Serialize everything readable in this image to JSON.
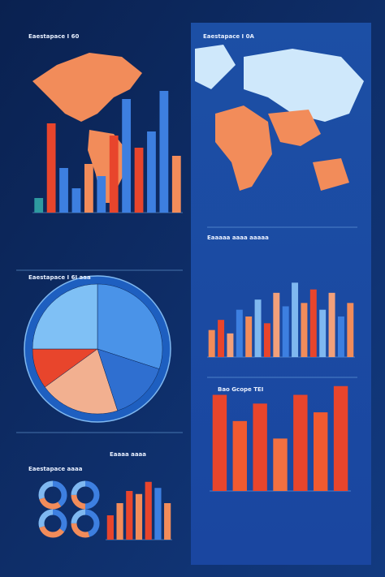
{
  "chart_data": [
    {
      "type": "bar",
      "title": "Eaestapace I 60",
      "values": [
        18,
        110,
        55,
        30,
        60,
        45,
        95,
        140,
        80,
        100,
        150,
        70
      ],
      "colors": [
        "#2e9aa0",
        "#e8452c",
        "#3d7fe0",
        "#3d7fe0",
        "#f28c5a",
        "#3d7fe0",
        "#e8452c",
        "#3d7fe0",
        "#e8452c",
        "#3d7fe0",
        "#3d7fe0",
        "#f28c5a"
      ],
      "ylim": [
        0,
        160
      ]
    },
    {
      "type": "map",
      "title": "Eaestapace I 0A"
    },
    {
      "type": "bar",
      "title": "Eaaaaa aaaa aaaaa",
      "values": [
        40,
        55,
        35,
        70,
        60,
        85,
        50,
        95,
        75,
        110,
        80,
        100,
        70,
        95,
        60,
        80
      ],
      "colors": [
        "#f28c5a",
        "#e8452c",
        "#f2a07a",
        "#3d7fe0",
        "#f28c5a",
        "#7fb8f0",
        "#e8452c",
        "#f2a07a",
        "#3d7fe0",
        "#7fb8f0",
        "#f28c5a",
        "#e8452c",
        "#7fb8f0",
        "#f2a07a",
        "#3d7fe0",
        "#f28c5a"
      ],
      "ylim": [
        0,
        120
      ]
    },
    {
      "type": "pie",
      "title": "Eaestapace I 6I aaa",
      "values": [
        30,
        15,
        20,
        10,
        25
      ],
      "colors": [
        "#4a93e8",
        "#2f6fd0",
        "#f2b090",
        "#e8452c",
        "#7fc0f5"
      ]
    },
    {
      "type": "bar",
      "title": "Bao Gcope TEI",
      "values": [
        110,
        80,
        100,
        60,
        110,
        90,
        120
      ],
      "colors": [
        "#e8452c",
        "#f05a30",
        "#e8452c",
        "#f27040",
        "#e8452c",
        "#f05a30",
        "#e8452c"
      ],
      "ylim": [
        0,
        130
      ]
    },
    {
      "type": "donut",
      "title": "Eaestapace aaaa",
      "values": [
        [
          40,
          30,
          30
        ],
        [
          50,
          25,
          25
        ],
        [
          35,
          35,
          30
        ],
        [
          45,
          30,
          25
        ]
      ],
      "colors": [
        "#3d7fe0",
        "#f28c5a",
        "#7fb8f0"
      ]
    },
    {
      "type": "bar",
      "title": "Eaaaa aaaa",
      "values": [
        40,
        60,
        80,
        75,
        95,
        85,
        60
      ],
      "colors": [
        "#e8452c",
        "#f28c5a",
        "#e8452c",
        "#f28c5a",
        "#e8452c",
        "#3d7fe0",
        "#f28c5a"
      ],
      "ylim": [
        0,
        100
      ]
    }
  ]
}
